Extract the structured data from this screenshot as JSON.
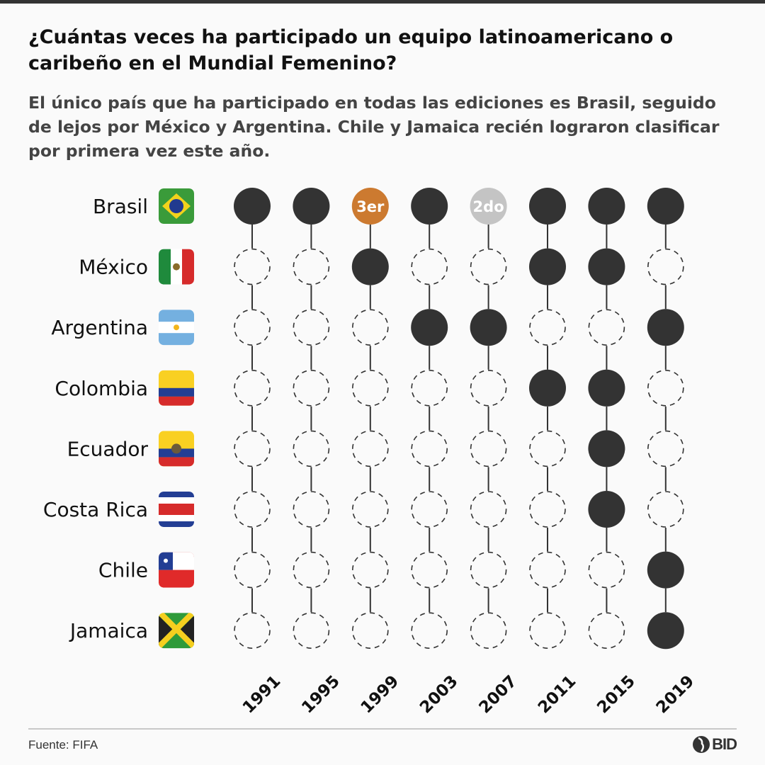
{
  "title": "¿Cuántas veces ha participado un equipo latinoamericano o caribeño en el Mundial Femenino?",
  "subtitle": "El único país que ha participado en todas las ediciones es Brasil, seguido de lejos por México y Argentina. Chile y Jamaica recién lograron clasificar por primera vez este año.",
  "source": "Fuente: FIFA",
  "logo_text": "BID",
  "colors": {
    "participated": "#333333",
    "third_place": "#cc7a30",
    "second_place": "#c4c4c4",
    "not_participated_stroke": "#333333"
  },
  "chart_data": {
    "type": "dot-matrix",
    "years": [
      "1991",
      "1995",
      "1999",
      "2003",
      "2007",
      "2011",
      "2015",
      "2019"
    ],
    "countries": [
      {
        "name": "Brasil",
        "flag": "brazil-flag",
        "participated": [
          1,
          1,
          1,
          1,
          1,
          1,
          1,
          1
        ],
        "labels": {
          "1999": "3er",
          "2007": "2do"
        }
      },
      {
        "name": "México",
        "flag": "mexico-flag",
        "participated": [
          0,
          0,
          1,
          0,
          0,
          1,
          1,
          0
        ]
      },
      {
        "name": "Argentina",
        "flag": "argentina-flag",
        "participated": [
          0,
          0,
          0,
          1,
          1,
          0,
          0,
          1
        ]
      },
      {
        "name": "Colombia",
        "flag": "colombia-flag",
        "participated": [
          0,
          0,
          0,
          0,
          0,
          1,
          1,
          0
        ]
      },
      {
        "name": "Ecuador",
        "flag": "ecuador-flag",
        "participated": [
          0,
          0,
          0,
          0,
          0,
          0,
          1,
          0
        ]
      },
      {
        "name": "Costa Rica",
        "flag": "costa-rica-flag",
        "participated": [
          0,
          0,
          0,
          0,
          0,
          0,
          1,
          0
        ]
      },
      {
        "name": "Chile",
        "flag": "chile-flag",
        "participated": [
          0,
          0,
          0,
          0,
          0,
          0,
          0,
          1
        ]
      },
      {
        "name": "Jamaica",
        "flag": "jamaica-flag",
        "participated": [
          0,
          0,
          0,
          0,
          0,
          0,
          0,
          1
        ]
      }
    ]
  }
}
